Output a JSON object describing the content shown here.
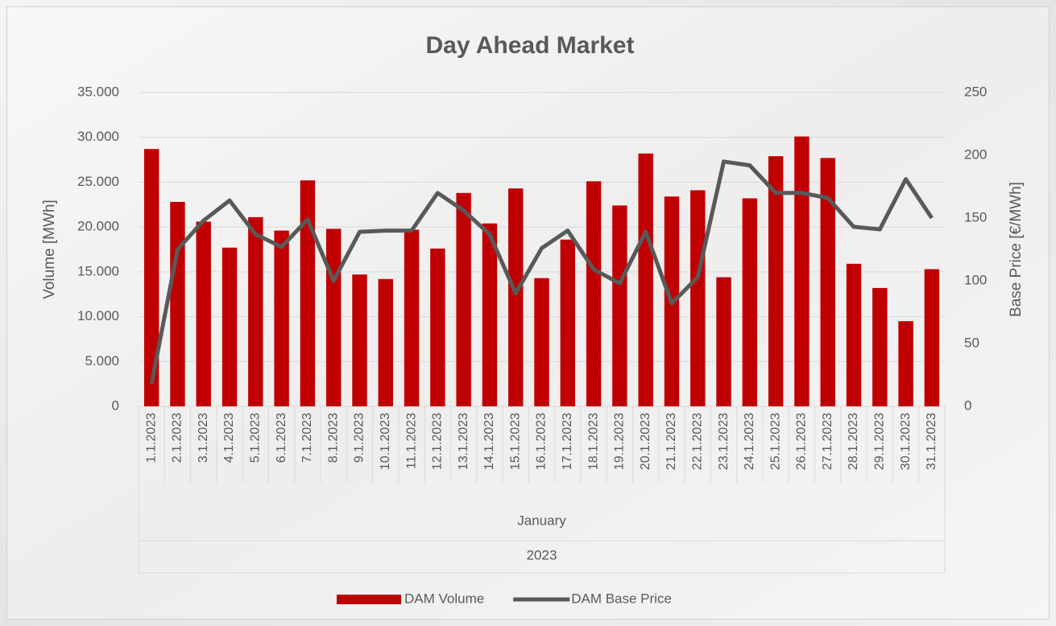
{
  "chart_data": {
    "type": "combo",
    "title": "Day Ahead Market",
    "y_label": "Volume [MWh]",
    "y2_label": "Base Price [€/MWh]",
    "categories": [
      "1.1.2023",
      "2.1.2023",
      "3.1.2023",
      "4.1.2023",
      "5.1.2023",
      "6.1.2023",
      "7.1.2023",
      "8.1.2023",
      "9.1.2023",
      "10.1.2023",
      "11.1.2023",
      "12.1.2023",
      "13.1.2023",
      "14.1.2023",
      "15.1.2023",
      "16.1.2023",
      "17.1.2023",
      "18.1.2023",
      "19.1.2023",
      "20.1.2023",
      "21.1.2023",
      "22.1.2023",
      "23.1.2023",
      "24.1.2023",
      "25.1.2023",
      "26.1.2023",
      "27.1.2023",
      "28.1.2023",
      "29.1.2023",
      "30.1.2023",
      "31.1.2023"
    ],
    "category_groups": [
      "January",
      "2023"
    ],
    "series": [
      {
        "name": "DAM Volume",
        "type": "bar",
        "color": "#c00000",
        "values": [
          28700,
          22800,
          20600,
          17700,
          21100,
          19600,
          25200,
          19800,
          14700,
          14200,
          19700,
          17600,
          23800,
          20400,
          24300,
          14300,
          18600,
          25100,
          22400,
          28200,
          23400,
          24100,
          14400,
          23200,
          27900,
          30100,
          27700,
          15900,
          13200,
          9500,
          15300
        ]
      },
      {
        "name": "DAM Base Price",
        "type": "line",
        "axis": "y2",
        "color": "#595959",
        "values": [
          18,
          125,
          148,
          164,
          137,
          127,
          149,
          100,
          139,
          140,
          140,
          170,
          156,
          137,
          90,
          126,
          140,
          109,
          98,
          139,
          82,
          103,
          195,
          192,
          170,
          170,
          166,
          143,
          141,
          181,
          150
        ]
      }
    ],
    "ylim": [
      0,
      35000
    ],
    "yticks": [
      {
        "value": 0,
        "label": "0"
      },
      {
        "value": 5000,
        "label": "5.000"
      },
      {
        "value": 10000,
        "label": "10.000"
      },
      {
        "value": 15000,
        "label": "15.000"
      },
      {
        "value": 20000,
        "label": "20.000"
      },
      {
        "value": 25000,
        "label": "25.000"
      },
      {
        "value": 30000,
        "label": "30.000"
      },
      {
        "value": 35000,
        "label": "35.000"
      }
    ],
    "y2lim": [
      0,
      250
    ],
    "y2ticks": [
      0,
      50,
      100,
      150,
      200,
      250
    ],
    "grid": true,
    "legend": "bottom"
  }
}
